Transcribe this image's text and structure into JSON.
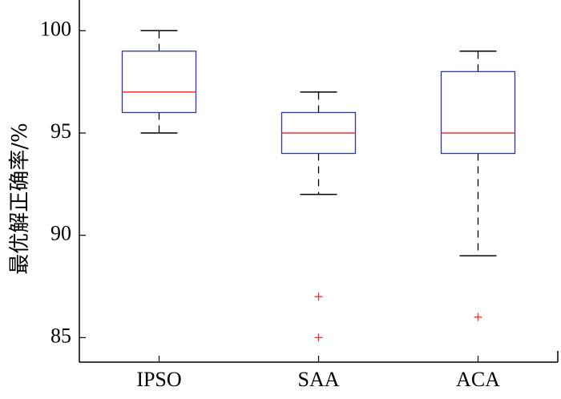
{
  "chart_data": {
    "type": "boxplot",
    "title": "",
    "xlabel": "",
    "ylabel": "最优解正确率/%",
    "ylim": [
      83.8,
      101.5
    ],
    "yticks": [
      85,
      90,
      95,
      100
    ],
    "categories": [
      "IPSO",
      "SAA",
      "ACA"
    ],
    "boxes": [
      {
        "name": "IPSO",
        "min": 95,
        "q1": 96,
        "median": 97,
        "q3": 99,
        "max": 100,
        "outliers": []
      },
      {
        "name": "SAA",
        "min": 92,
        "q1": 94,
        "median": 95,
        "q3": 96,
        "max": 97,
        "outliers": [
          87,
          85
        ]
      },
      {
        "name": "ACA",
        "min": 89,
        "q1": 94,
        "median": 95,
        "q3": 98,
        "max": 99,
        "outliers": [
          86
        ]
      }
    ],
    "colors": {
      "box": "#2b35a3",
      "median": "#ff2a2a",
      "whisker": "#000000",
      "outlier": "#ff2a2a",
      "axis": "#000000"
    }
  }
}
